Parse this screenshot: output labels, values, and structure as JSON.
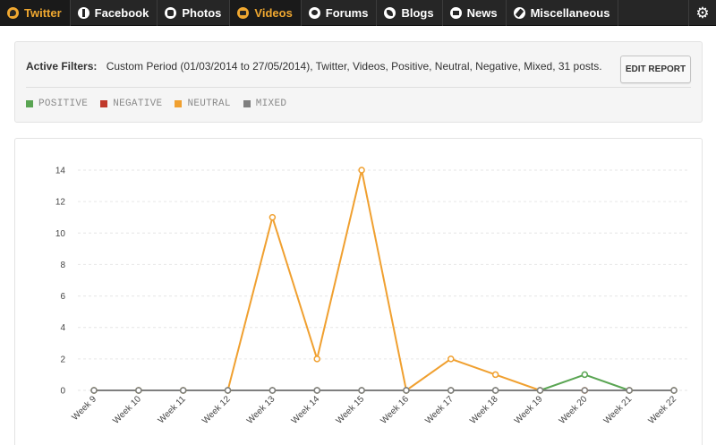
{
  "nav": {
    "tabs": [
      {
        "label": "Twitter",
        "icon": "twitter-icon",
        "active": true
      },
      {
        "label": "Facebook",
        "icon": "facebook-icon",
        "active": false
      },
      {
        "label": "Photos",
        "icon": "photos-icon",
        "active": false
      },
      {
        "label": "Videos",
        "icon": "videos-icon",
        "active": true
      },
      {
        "label": "Forums",
        "icon": "forums-icon",
        "active": false
      },
      {
        "label": "Blogs",
        "icon": "blogs-icon",
        "active": false
      },
      {
        "label": "News",
        "icon": "news-icon",
        "active": false
      },
      {
        "label": "Miscellaneous",
        "icon": "misc-icon",
        "active": false
      }
    ],
    "settings_icon": "gear-icon",
    "active_color": "#f0a830"
  },
  "filters": {
    "label": "Active Filters:",
    "text": "Custom Period (01/03/2014 to 27/05/2014),  Twitter,  Videos,  Positive,  Neutral,  Negative,  Mixed,  31 posts.",
    "edit_button": "EDIT REPORT"
  },
  "legend": [
    {
      "label": "POSITIVE",
      "color": "#5aa553"
    },
    {
      "label": "NEGATIVE",
      "color": "#c0392b"
    },
    {
      "label": "NEUTRAL",
      "color": "#f0a030"
    },
    {
      "label": "MIXED",
      "color": "#7f7f7f"
    }
  ],
  "chart_data": {
    "type": "line",
    "categories": [
      "Week 9",
      "Week 10",
      "Week 11",
      "Week 12",
      "Week 13",
      "Week 14",
      "Week 15",
      "Week 16",
      "Week 17",
      "Week 18",
      "Week 19",
      "Week 20",
      "Week 21",
      "Week 22"
    ],
    "series": [
      {
        "name": "NEGATIVE",
        "color": "#c0392b",
        "values": [
          0,
          0,
          0,
          0,
          0,
          0,
          0,
          0,
          0,
          0,
          0,
          0,
          0,
          0
        ]
      },
      {
        "name": "NEUTRAL",
        "color": "#f0a030",
        "values": [
          0,
          0,
          0,
          0,
          11,
          2,
          14,
          0,
          2,
          1,
          0,
          0,
          0,
          0
        ]
      },
      {
        "name": "POSITIVE",
        "color": "#5aa553",
        "values": [
          0,
          0,
          0,
          0,
          0,
          0,
          0,
          0,
          0,
          0,
          0,
          1,
          0,
          0
        ]
      },
      {
        "name": "MIXED",
        "color": "#7f7f7f",
        "values": [
          0,
          0,
          0,
          0,
          0,
          0,
          0,
          0,
          0,
          0,
          0,
          0,
          0,
          0
        ]
      }
    ],
    "yticks": [
      0,
      2,
      4,
      6,
      8,
      10,
      12,
      14
    ],
    "ylim": [
      0,
      14
    ],
    "grid": true,
    "legend_position": "top-left"
  }
}
